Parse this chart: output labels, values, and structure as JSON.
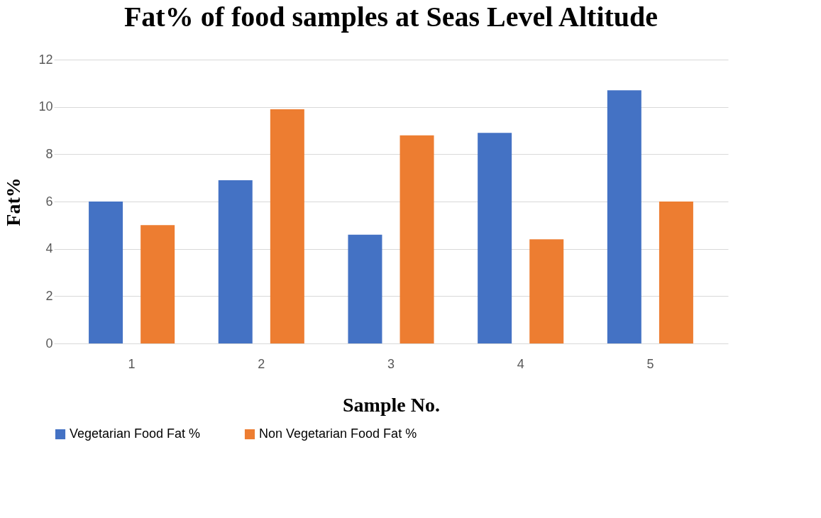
{
  "chart_data": {
    "type": "bar",
    "title": "Fat% of food samples at Seas Level Altitude",
    "xlabel": "Sample No.",
    "ylabel": "Fat%",
    "categories": [
      "1",
      "2",
      "3",
      "4",
      "5"
    ],
    "series": [
      {
        "name": "Vegetarian Food Fat %",
        "color": "#4472c4",
        "values": [
          6.0,
          6.9,
          4.6,
          8.9,
          10.7
        ]
      },
      {
        "name": "Non Vegetarian Food Fat %",
        "color": "#ed7d31",
        "values": [
          5.0,
          9.9,
          8.8,
          4.4,
          6.0
        ]
      }
    ],
    "ylim": [
      0,
      12
    ],
    "yticks": [
      0,
      2,
      4,
      6,
      8,
      10,
      12
    ],
    "grid": "y",
    "legend": "bottom"
  }
}
